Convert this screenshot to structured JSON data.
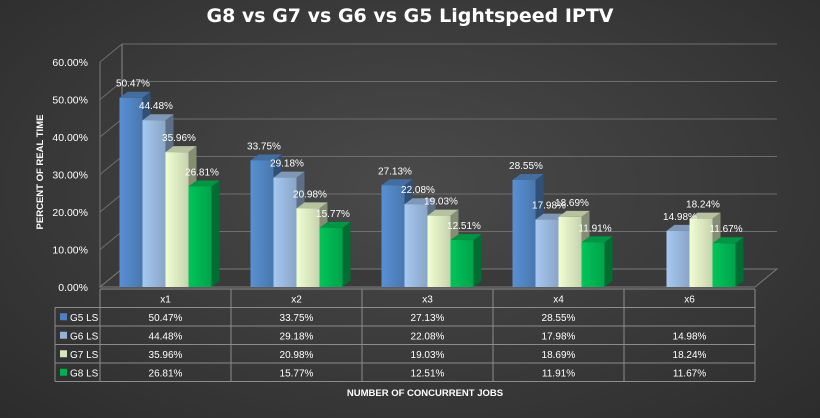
{
  "chart_data": {
    "type": "bar",
    "title": "G8 vs G7 vs G6 vs G5 Lightspeed IPTV",
    "xlabel": "NUMBER OF CONCURRENT JOBS",
    "ylabel": "PERCENT OF REAL TIME",
    "ylim": [
      0,
      60
    ],
    "yticks": [
      "0.00%",
      "10.00%",
      "20.00%",
      "30.00%",
      "40.00%",
      "50.00%",
      "60.00%"
    ],
    "categories": [
      "x1",
      "x2",
      "x3",
      "x4",
      "x6"
    ],
    "series": [
      {
        "name": "G5 LS",
        "values": [
          50.47,
          33.75,
          27.13,
          28.55,
          null
        ],
        "labels": [
          "50.47%",
          "33.75%",
          "27.13%",
          "28.55%",
          ""
        ]
      },
      {
        "name": "G6 LS",
        "values": [
          44.48,
          29.18,
          22.08,
          17.98,
          14.98
        ],
        "labels": [
          "44.48%",
          "29.18%",
          "22.08%",
          "17.98%",
          "14.98%"
        ]
      },
      {
        "name": "G7 LS",
        "values": [
          35.96,
          20.98,
          19.03,
          18.69,
          18.24
        ],
        "labels": [
          "35.96%",
          "20.98%",
          "19.03%",
          "18.69%",
          "18.24%"
        ]
      },
      {
        "name": "G8 LS",
        "values": [
          26.81,
          15.77,
          12.51,
          11.91,
          11.67
        ],
        "labels": [
          "26.81%",
          "15.77%",
          "12.51%",
          "11.91%",
          "11.67%"
        ]
      }
    ],
    "legend": "data-table",
    "colors": {
      "G5 LS": "#4f81bd",
      "G6 LS": "#95b3d7",
      "G7 LS": "#d7e4bc",
      "G8 LS": "#00b050",
      "background": "#3d3d3d",
      "grid": "#707070"
    }
  }
}
